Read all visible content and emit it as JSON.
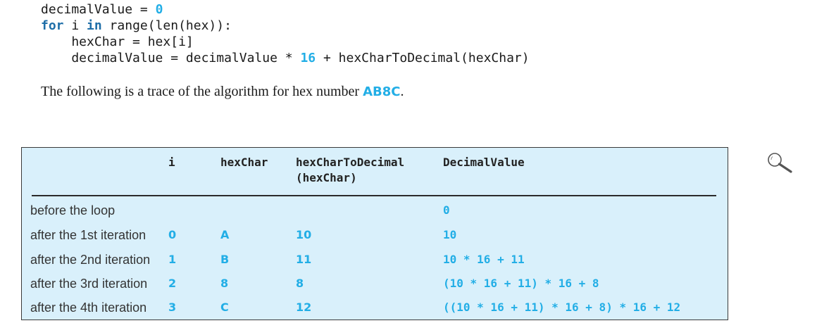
{
  "code": {
    "l1_text": "decimalValue = ",
    "l1_num": "0",
    "l2_kw1": "for",
    "l2_mid": " i ",
    "l2_kw2": "in",
    "l2_rest": " range(len(hex)):",
    "l3": "    hexChar = hex[i]",
    "l4_a": "    decimalValue = decimalValue * ",
    "l4_num": "16",
    "l4_b": " + hexCharToDecimal(hexChar)"
  },
  "prose": {
    "text": "The following is a trace of the algorithm for hex number ",
    "hex": "AB8C",
    "end": "."
  },
  "table": {
    "headers": {
      "i": "i",
      "hexChar": "hexChar",
      "hexCharToDecimal_1": "hexCharToDecimal",
      "hexCharToDecimal_2": "(hexChar)",
      "decimalValue": "DecimalValue"
    },
    "rows": [
      {
        "label": "before the loop",
        "i": "",
        "hexChar": "",
        "dec": "",
        "value": "0"
      },
      {
        "label": "after the 1st iteration",
        "i": "0",
        "hexChar": "A",
        "dec": "10",
        "value": "10"
      },
      {
        "label": "after the 2nd iteration",
        "i": "1",
        "hexChar": "B",
        "dec": "11",
        "value": "10 * 16 + 11"
      },
      {
        "label": "after the 3rd iteration",
        "i": "2",
        "hexChar": "8",
        "dec": "8",
        "value": "(10 * 16 + 11) * 16 + 8"
      },
      {
        "label": "after the 4th iteration",
        "i": "3",
        "hexChar": "C",
        "dec": "12",
        "value": "((10 * 16 + 11) * 16 + 8) * 16 + 12"
      }
    ]
  },
  "icons": {
    "magnifier": "magnifier-icon"
  },
  "colors": {
    "accent": "#22aee6",
    "keyword": "#1e6ea8",
    "table_bg": "#d9f0fb"
  }
}
